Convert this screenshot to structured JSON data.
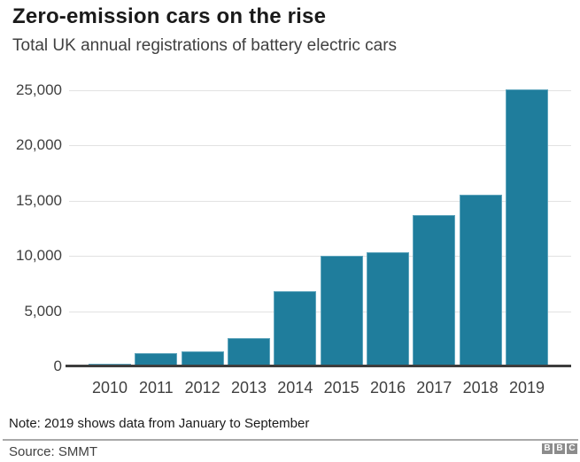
{
  "header": {
    "title": "Zero-emission cars on the rise",
    "subtitle": "Total UK annual registrations of battery electric cars"
  },
  "chart_data": {
    "type": "bar",
    "title": "Zero-emission cars on the rise",
    "subtitle": "Total UK annual registrations of battery electric cars",
    "categories": [
      "2010",
      "2011",
      "2012",
      "2013",
      "2014",
      "2015",
      "2016",
      "2017",
      "2018",
      "2019"
    ],
    "values": [
      150,
      1100,
      1250,
      2500,
      6700,
      9900,
      10250,
      13600,
      15500,
      25000
    ],
    "xlabel": "",
    "ylabel": "",
    "ylim": [
      0,
      25000
    ],
    "yticks": [
      0,
      5000,
      10000,
      15000,
      20000,
      25000
    ],
    "ytick_labels": [
      "0",
      "5,000",
      "10,000",
      "15,000",
      "20,000",
      "25,000"
    ],
    "grid": true,
    "legend": false,
    "bar_color": "#1f7d9c",
    "gridline_color": "#e2e2e2",
    "axis_color": "#3d3d3d"
  },
  "footer": {
    "note": "Note: 2019 shows data from January to September",
    "source": "Source: SMMT"
  },
  "logo": {
    "name": "BBC",
    "letters": [
      "B",
      "B",
      "C"
    ]
  }
}
